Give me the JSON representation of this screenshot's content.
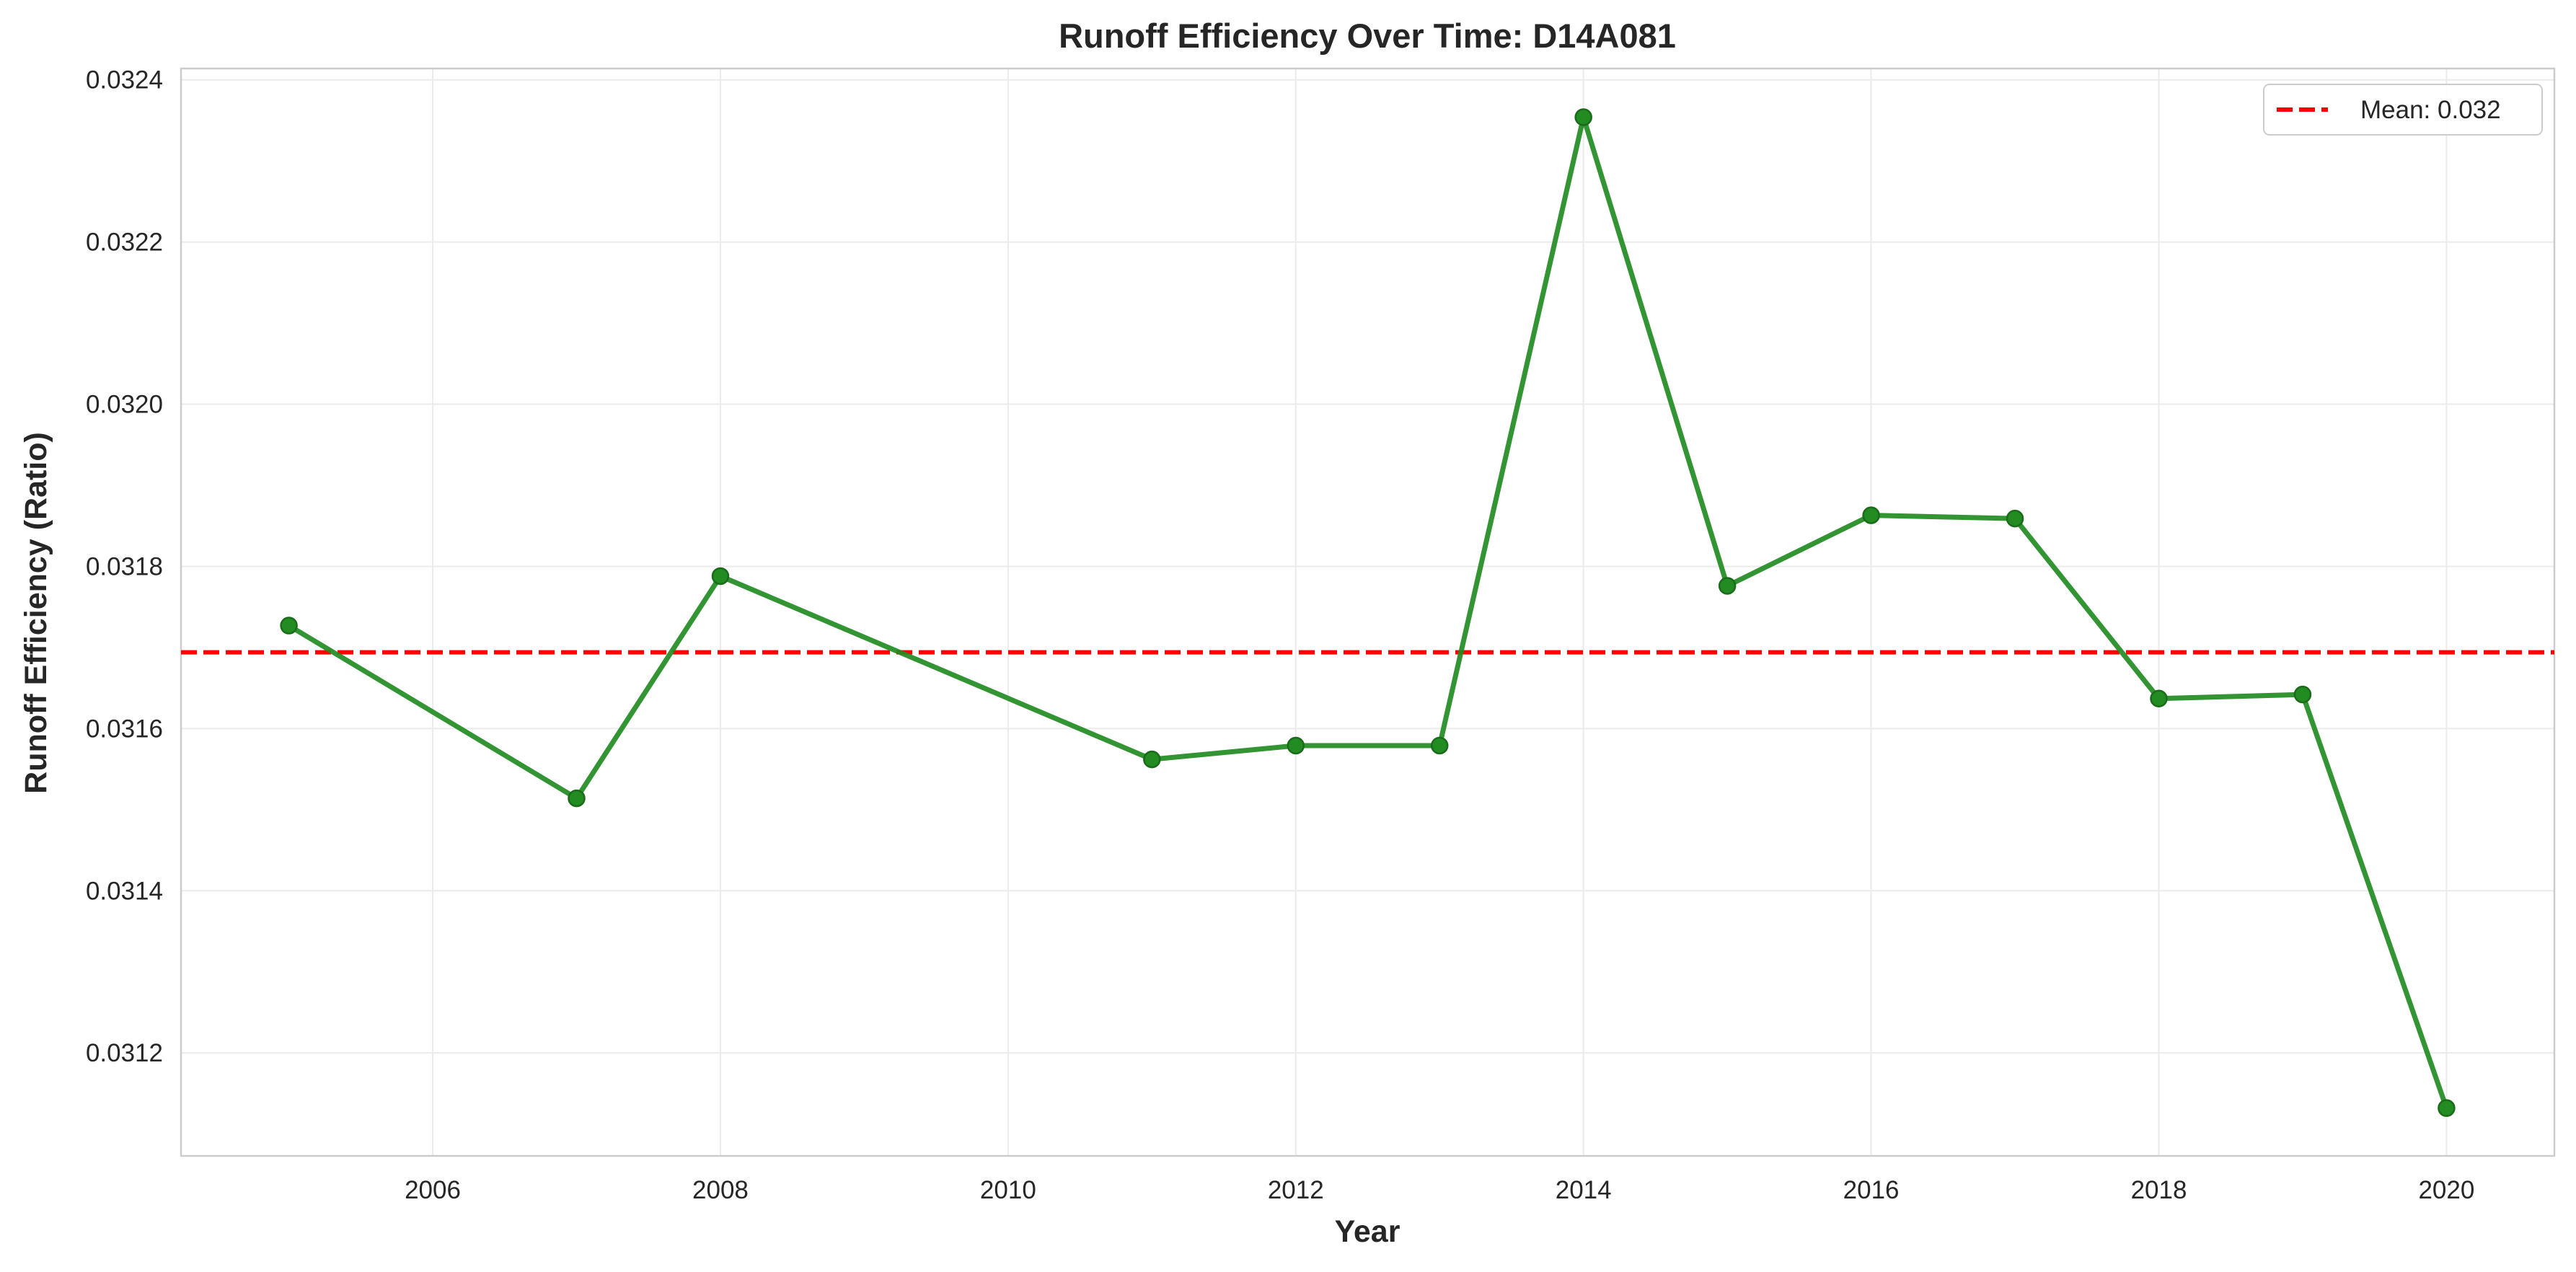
{
  "chart_data": {
    "type": "line",
    "title": "Runoff Efficiency Over Time: D14A081",
    "xlabel": "Year",
    "ylabel": "Runoff Efficiency (Ratio)",
    "xlim": [
      2004.25,
      2020.75
    ],
    "ylim": [
      0.031073,
      0.032414
    ],
    "x_ticks": [
      2006,
      2008,
      2010,
      2012,
      2014,
      2016,
      2018,
      2020
    ],
    "y_ticks": [
      0.0312,
      0.0314,
      0.0316,
      0.0318,
      0.032,
      0.0322,
      0.0324
    ],
    "y_tick_labels": [
      "0.0312",
      "0.0314",
      "0.0316",
      "0.0318",
      "0.0320",
      "0.0322",
      "0.0324"
    ],
    "grid": true,
    "legend_position": "top-right",
    "series": [
      {
        "color": "#228B22",
        "marker": "circle",
        "x": [
          2005,
          2007,
          2008,
          2011,
          2012,
          2013,
          2014,
          2015,
          2016,
          2017,
          2018,
          2019,
          2020
        ],
        "y": [
          0.031727,
          0.031514,
          0.031788,
          0.031562,
          0.031579,
          0.031579,
          0.032354,
          0.031776,
          0.031863,
          0.031859,
          0.031637,
          0.031642,
          0.031132
        ]
      }
    ],
    "reference_lines": [
      {
        "label": "Mean: 0.032",
        "value": 0.031694,
        "color": "#ff0000",
        "style": "dashed"
      }
    ]
  }
}
